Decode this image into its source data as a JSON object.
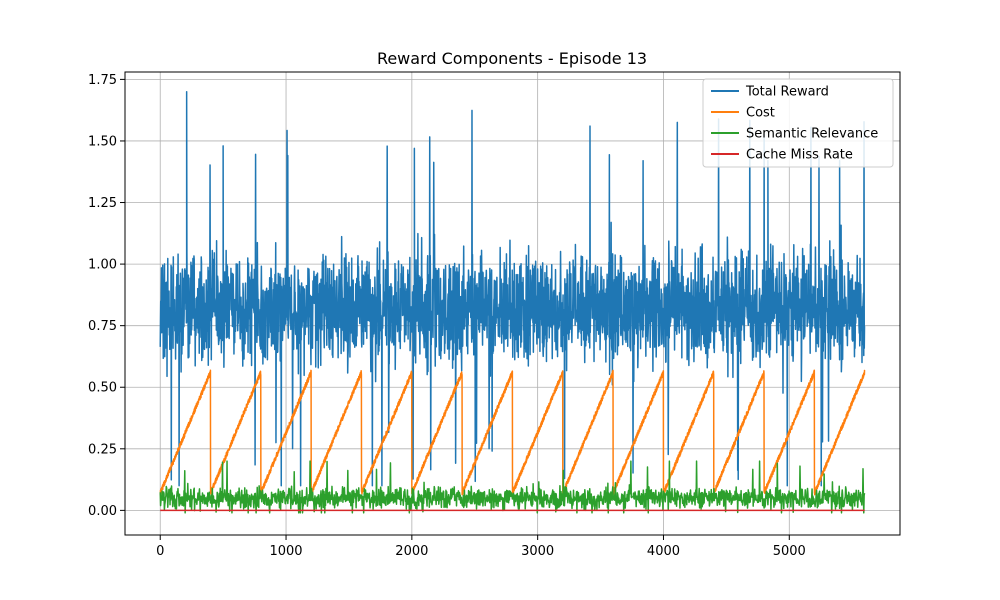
{
  "chart_data": {
    "type": "line",
    "title": "Reward Components - Episode 13",
    "xlabel": "",
    "ylabel": "",
    "xlim": [
      -280,
      5880
    ],
    "ylim": [
      -0.1,
      1.78
    ],
    "x_ticks": [
      0,
      1000,
      2000,
      3000,
      4000,
      5000
    ],
    "y_ticks": [
      0.0,
      0.25,
      0.5,
      0.75,
      1.0,
      1.25,
      1.5,
      1.75
    ],
    "x_tick_labels": [
      "0",
      "1000",
      "2000",
      "3000",
      "4000",
      "5000"
    ],
    "y_tick_labels": [
      "0.00",
      "0.25",
      "0.50",
      "0.75",
      "1.00",
      "1.25",
      "1.50",
      "1.75"
    ],
    "grid": true,
    "legend_position": "upper-right",
    "steps": 5600,
    "series": [
      {
        "name": "Total Reward",
        "color": "#1f77b4",
        "pattern": "noisy",
        "mean": 0.82,
        "typical_range": [
          0.55,
          1.15
        ],
        "extremes": [
          0.1,
          1.7
        ],
        "peak_points": [
          [
            210,
            1.7
          ],
          [
            500,
            1.48
          ],
          [
            2020,
            1.47
          ],
          [
            4830,
            1.42
          ],
          [
            5400,
            1.42
          ]
        ]
      },
      {
        "name": "Cost",
        "color": "#ff7f0e",
        "pattern": "sawtooth",
        "cycle_length": 400,
        "min": 0.07,
        "max": 0.56
      },
      {
        "name": "Semantic Relevance",
        "color": "#2ca02c",
        "pattern": "noisy",
        "mean": 0.05,
        "typical_range": [
          0.0,
          0.12
        ],
        "extremes": [
          -0.01,
          0.2
        ]
      },
      {
        "name": "Cache Miss Rate",
        "color": "#d62728",
        "pattern": "constant",
        "value": 0.0
      }
    ]
  }
}
